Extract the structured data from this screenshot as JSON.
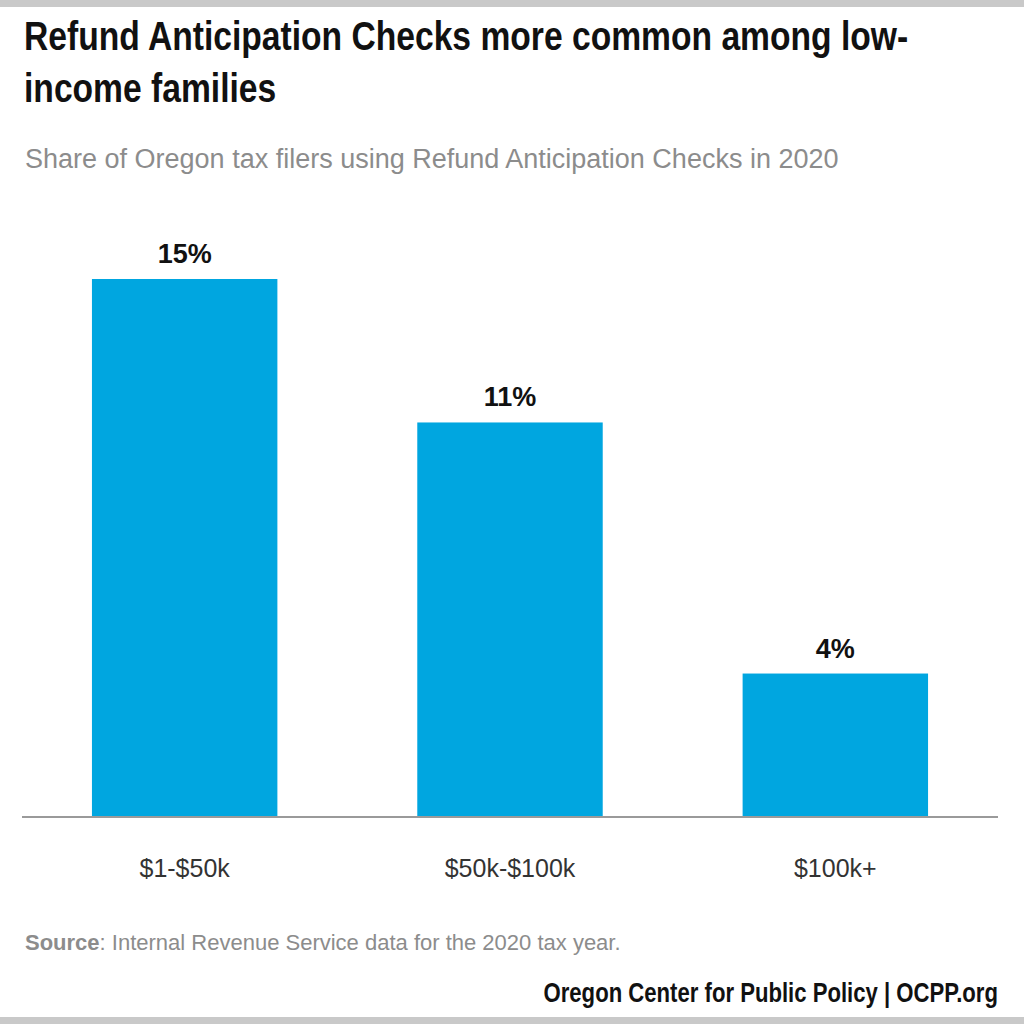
{
  "chart_data": {
    "type": "bar",
    "title": "Refund Anticipation Checks more common among low-income families",
    "subtitle": "Share of Oregon tax filers using Refund Anticipation Checks in 2020",
    "categories": [
      "$1-$50k",
      "$50k-$100k",
      "$100k+"
    ],
    "values": [
      15,
      11,
      4
    ],
    "value_labels": [
      "15%",
      "11%",
      "4%"
    ],
    "data_labels": true,
    "color": "#00a6e0",
    "ylim": [
      0,
      15
    ],
    "tick_labels": "x",
    "grid": false,
    "source": "Source: Internal Revenue Service data for the 2020 tax year.",
    "credit": "Oregon Center for Public Policy | OCPP.org"
  }
}
